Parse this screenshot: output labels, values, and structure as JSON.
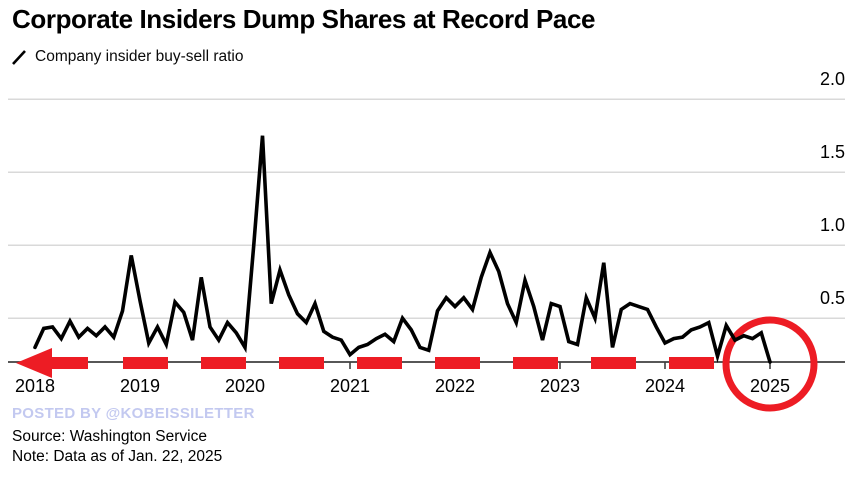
{
  "title": "Corporate Insiders Dump Shares at Record Pace",
  "legend": {
    "label": "Company insider buy-sell ratio",
    "icon": "slash-line-icon"
  },
  "footer": {
    "posted_by": "POSTED BY @KOBEISSILETTER",
    "source": "Source: Washington Service",
    "note": "Note: Data as of Jan. 22, 2025"
  },
  "colors": {
    "accent_red": "#ed1c24",
    "line": "#000000",
    "grid": "#d9d9d9",
    "axis": "#3f3f3f",
    "posted_by": "#c3c9f0"
  },
  "chart_data": {
    "type": "line",
    "title": "Corporate Insiders Dump Shares at Record Pace",
    "series_name": "Company insider buy-sell ratio",
    "x_unit": "month",
    "x_start": "2018-01",
    "x_end": "2025-01",
    "x_tick_labels": [
      "2018",
      "2019",
      "2020",
      "2021",
      "2022",
      "2023",
      "2024",
      "2025"
    ],
    "y_ticks": [
      0.5,
      1.0,
      1.5,
      2.0
    ],
    "y_tick_labels": [
      "0.5",
      "1.0",
      "1.5",
      "2.0"
    ],
    "ylim": [
      0.2,
      2.0
    ],
    "grid": "horizontal",
    "legend_position": "top-left",
    "values": [
      0.3,
      0.43,
      0.44,
      0.36,
      0.48,
      0.37,
      0.43,
      0.38,
      0.44,
      0.37,
      0.55,
      0.93,
      0.62,
      0.33,
      0.44,
      0.32,
      0.61,
      0.54,
      0.35,
      0.78,
      0.44,
      0.35,
      0.47,
      0.4,
      0.3,
      1.0,
      1.75,
      0.6,
      0.83,
      0.66,
      0.53,
      0.47,
      0.6,
      0.41,
      0.37,
      0.35,
      0.25,
      0.3,
      0.32,
      0.36,
      0.39,
      0.34,
      0.5,
      0.42,
      0.3,
      0.28,
      0.55,
      0.64,
      0.58,
      0.64,
      0.56,
      0.78,
      0.95,
      0.82,
      0.6,
      0.47,
      0.76,
      0.58,
      0.35,
      0.6,
      0.58,
      0.34,
      0.32,
      0.64,
      0.5,
      0.88,
      0.3,
      0.56,
      0.6,
      0.58,
      0.56,
      0.44,
      0.33,
      0.36,
      0.37,
      0.42,
      0.44,
      0.47,
      0.24,
      0.45,
      0.35,
      0.38,
      0.36,
      0.4,
      0.2
    ],
    "annotations": [
      {
        "type": "arrow",
        "description": "red dashed arrow along the baseline pointing left"
      },
      {
        "type": "circle",
        "description": "red circle highlighting the Jan 2025 record-low point at about 0.2"
      }
    ]
  }
}
